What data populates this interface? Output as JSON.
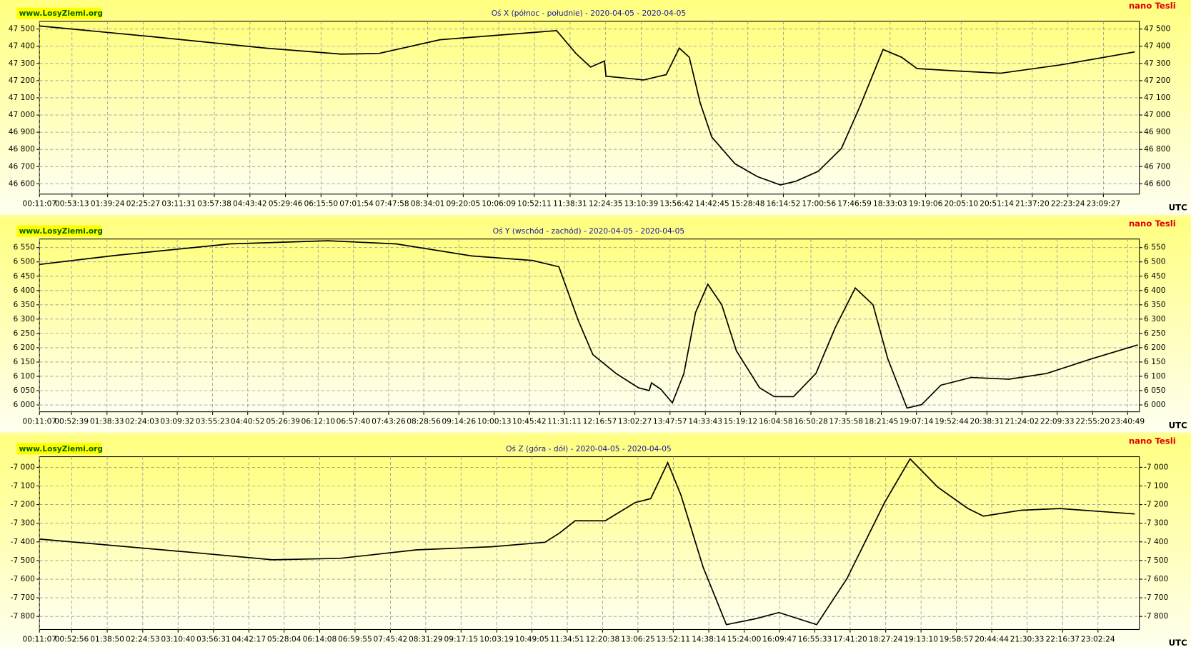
{
  "chart_data": [
    {
      "type": "line",
      "source": "www.LosyZiemi.org",
      "title": "Oś X (północ - południe) - 2020-04-05 - 2020-04-05",
      "unit": "nano Tesli",
      "x_label": "UTC",
      "color": "#000000",
      "grid": true,
      "xlim": [
        "00:11:07",
        "23:56:00"
      ],
      "xticks": [
        "00:11:07",
        "00:53:13",
        "01:39:24",
        "02:25:27",
        "03:11:31",
        "03:57:38",
        "04:43:42",
        "05:29:46",
        "06:15:50",
        "07:01:54",
        "07:47:58",
        "08:34:01",
        "09:20:05",
        "10:06:09",
        "10:52:11",
        "11:38:31",
        "12:24:35",
        "13:10:39",
        "13:56:42",
        "14:42:45",
        "15:28:48",
        "16:14:52",
        "17:00:56",
        "17:46:59",
        "18:33:03",
        "19:19:06",
        "20:05:10",
        "20:51:14",
        "21:37:20",
        "22:23:24",
        "23:09:27"
      ],
      "ylim": [
        46540,
        47545
      ],
      "yticks": [
        {
          "value": 46600,
          "label": "46 600"
        },
        {
          "value": 46700,
          "label": "46 700"
        },
        {
          "value": 46800,
          "label": "46 800"
        },
        {
          "value": 46900,
          "label": "46 900"
        },
        {
          "value": 47000,
          "label": "47 000"
        },
        {
          "value": 47100,
          "label": "47 100"
        },
        {
          "value": 47200,
          "label": "47 200"
        },
        {
          "value": 47300,
          "label": "47 300"
        },
        {
          "value": 47400,
          "label": "47 400"
        },
        {
          "value": 47500,
          "label": "47 500"
        }
      ],
      "x": [
        "00:11",
        "02:36",
        "05:04",
        "06:42",
        "07:31",
        "08:50",
        "10:07",
        "11:21",
        "11:46",
        "12:05",
        "12:23",
        "12:25",
        "13:14",
        "13:43",
        "14:00",
        "14:13",
        "14:27",
        "14:42",
        "15:12",
        "15:41",
        "16:11",
        "16:31",
        "17:00",
        "17:30",
        "17:54",
        "18:24",
        "18:48",
        "19:08",
        "19:57",
        "20:56",
        "22:15",
        "23:50"
      ],
      "values": [
        47518,
        47456,
        47389,
        47354,
        47358,
        47438,
        47465,
        47491,
        47358,
        47279,
        47314,
        47226,
        47204,
        47235,
        47389,
        47336,
        47071,
        46872,
        46717,
        46642,
        46593,
        46615,
        46673,
        46805,
        47049,
        47381,
        47336,
        47270,
        47257,
        47243,
        47292,
        47367
      ]
    },
    {
      "type": "line",
      "source": "www.LosyZiemi.org",
      "title": "Oś Y (wschód - zachód) - 2020-04-05 - 2020-04-05",
      "unit": "nano Tesli",
      "x_label": "UTC",
      "color": "#000000",
      "grid": true,
      "xlim": [
        "00:11:07",
        "23:56:00"
      ],
      "xticks": [
        "00:11:07",
        "00:52:39",
        "01:38:33",
        "02:24:03",
        "03:09:32",
        "03:55:23",
        "04:40:52",
        "05:26:39",
        "06:12:10",
        "06:57:40",
        "07:43:26",
        "08:28:56",
        "09:14:26",
        "10:00:13",
        "10:45:42",
        "11:31:11",
        "12:16:57",
        "13:02:27",
        "13:47:57",
        "14:33:43",
        "15:19:12",
        "16:04:58",
        "16:50:28",
        "17:35:58",
        "18:21:45",
        "19:07:14",
        "19:52:44",
        "20:38:31",
        "21:24:02",
        "22:09:33",
        "22:55:20",
        "23:40:49"
      ],
      "ylim": [
        5976,
        6580
      ],
      "yticks": [
        {
          "value": 6000,
          "label": "6 000"
        },
        {
          "value": 6050,
          "label": "6 050"
        },
        {
          "value": 6100,
          "label": "6 100"
        },
        {
          "value": 6150,
          "label": "6 150"
        },
        {
          "value": 6200,
          "label": "6 200"
        },
        {
          "value": 6250,
          "label": "6 250"
        },
        {
          "value": 6300,
          "label": "6 300"
        },
        {
          "value": 6350,
          "label": "6 350"
        },
        {
          "value": 6400,
          "label": "6 400"
        },
        {
          "value": 6450,
          "label": "6 450"
        },
        {
          "value": 6500,
          "label": "6 500"
        },
        {
          "value": 6550,
          "label": "6 550"
        }
      ],
      "x": [
        "00:11",
        "01:51",
        "04:18",
        "06:25",
        "07:53",
        "09:31",
        "10:50",
        "11:24",
        "11:49",
        "12:08",
        "12:38",
        "13:07",
        "13:21",
        "13:24",
        "13:36",
        "13:51",
        "14:06",
        "14:21",
        "14:37",
        "14:55",
        "15:14",
        "15:44",
        "16:03",
        "16:28",
        "16:57",
        "17:22",
        "17:48",
        "18:11",
        "18:30",
        "18:55",
        "19:14",
        "19:39",
        "20:18",
        "21:07",
        "21:56",
        "22:55",
        "23:54"
      ],
      "values": [
        6491,
        6523,
        6563,
        6574,
        6563,
        6521,
        6505,
        6483,
        6296,
        6176,
        6110,
        6060,
        6050,
        6077,
        6055,
        6007,
        6110,
        6323,
        6422,
        6350,
        6189,
        6060,
        6029,
        6029,
        6110,
        6270,
        6409,
        6350,
        6162,
        5989,
        6001,
        6069,
        6096,
        6090,
        6110,
        6162,
        6210
      ]
    },
    {
      "type": "line",
      "source": "www.LosyZiemi.org",
      "title": "Oś Z (góra - dół) - 2020-04-05 - 2020-04-05",
      "unit": "nano Tesli",
      "x_label": "UTC",
      "color": "#000000",
      "grid": true,
      "xlim": [
        "00:11:07",
        "23:56:00"
      ],
      "xticks": [
        "00:11:07",
        "00:52:56",
        "01:38:50",
        "02:24:53",
        "03:10:40",
        "03:56:31",
        "04:42:17",
        "05:28:04",
        "06:14:08",
        "06:59:55",
        "07:45:42",
        "08:31:29",
        "09:17:15",
        "10:03:19",
        "10:49:05",
        "11:34:51",
        "12:20:38",
        "13:06:25",
        "13:52:11",
        "14:38:14",
        "15:24:00",
        "16:09:47",
        "16:55:33",
        "17:41:20",
        "18:27:24",
        "19:13:10",
        "19:58:57",
        "20:44:44",
        "21:30:33",
        "22:16:37",
        "23:02:24"
      ],
      "ylim": [
        -7870,
        -6943
      ],
      "yticks": [
        {
          "value": -7800,
          "label": "-7 800"
        },
        {
          "value": -7700,
          "label": "-7 700"
        },
        {
          "value": -7600,
          "label": "-7 600"
        },
        {
          "value": -7500,
          "label": "-7 500"
        },
        {
          "value": -7400,
          "label": "-7 400"
        },
        {
          "value": -7300,
          "label": "-7 300"
        },
        {
          "value": -7200,
          "label": "-7 200"
        },
        {
          "value": -7100,
          "label": "-7 100"
        },
        {
          "value": -7000,
          "label": "-7 000"
        }
      ],
      "x": [
        "00:11",
        "03:25",
        "05:13",
        "06:41",
        "08:19",
        "09:57",
        "11:06",
        "11:25",
        "11:45",
        "12:24",
        "13:03",
        "13:23",
        "13:45",
        "14:02",
        "14:31",
        "15:01",
        "15:40",
        "16:09",
        "16:58",
        "17:37",
        "18:26",
        "18:59",
        "19:35",
        "20:14",
        "20:34",
        "21:23",
        "22:13",
        "23:50"
      ],
      "values": [
        -7385,
        -7455,
        -7496,
        -7488,
        -7443,
        -7426,
        -7402,
        -7352,
        -7287,
        -7287,
        -7189,
        -7168,
        -6975,
        -7148,
        -7537,
        -7844,
        -7811,
        -7779,
        -7844,
        -7598,
        -7189,
        -6955,
        -7107,
        -7221,
        -7262,
        -7230,
        -7221,
        -7250
      ]
    }
  ]
}
